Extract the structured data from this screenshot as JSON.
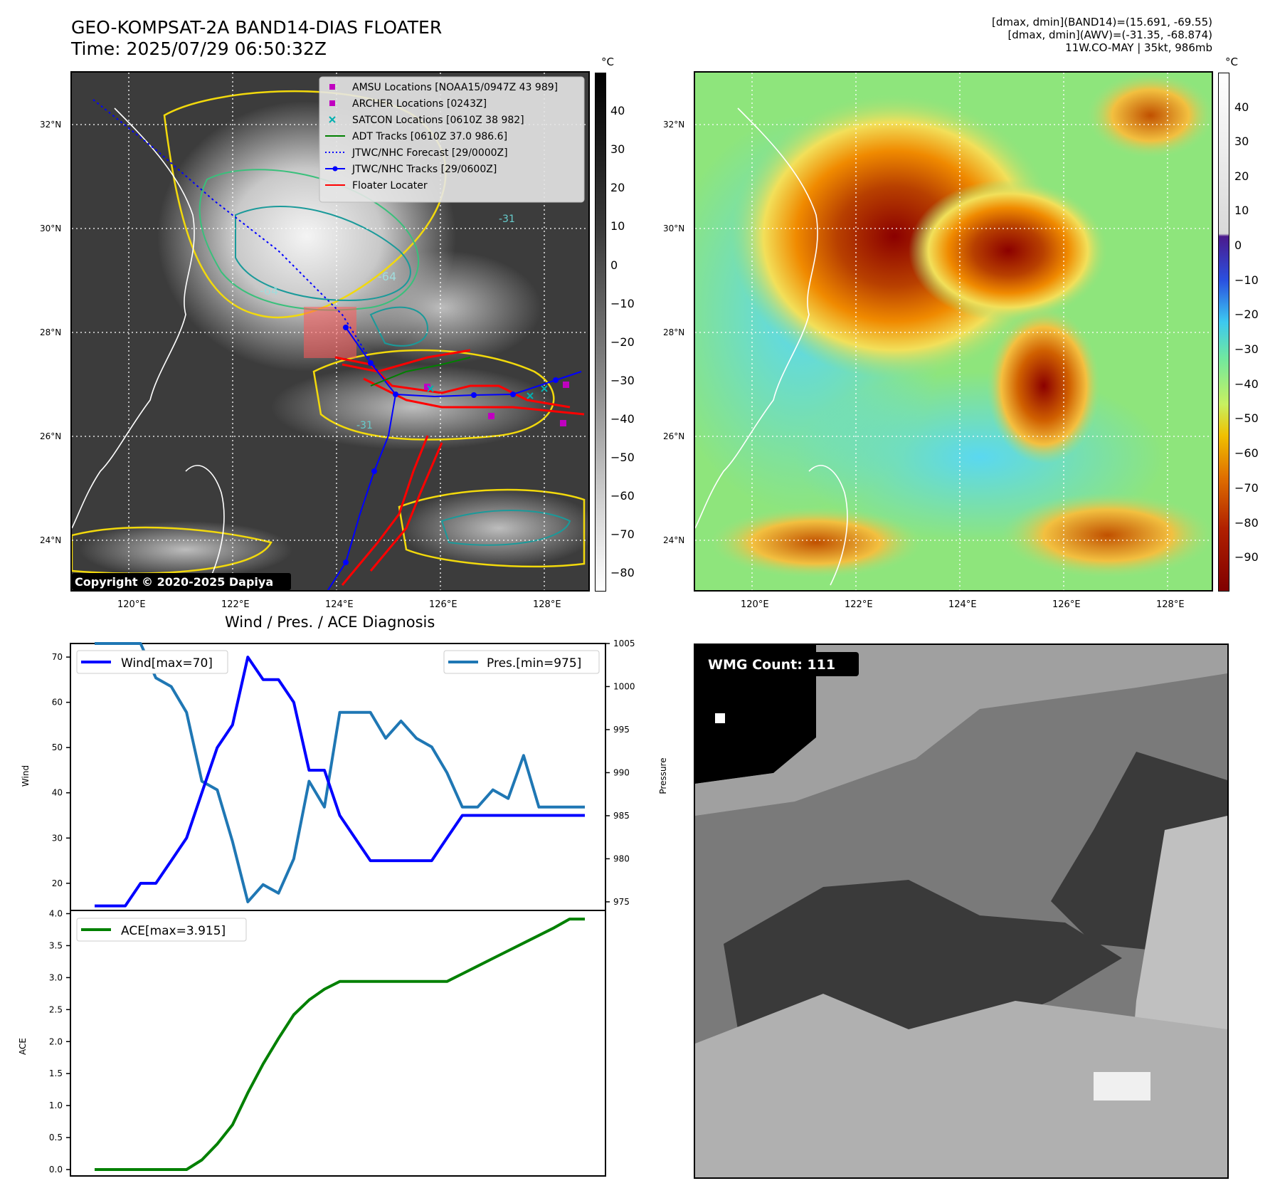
{
  "header": {
    "title_line1": "GEO-KOMPSAT-2A BAND14-DIAS FLOATER",
    "title_line2": "Time: 2025/07/29 06:50:32Z",
    "info_line1": "[dmax, dmin](BAND14)=(15.691, -69.55)",
    "info_line2": "[dmax, dmin](AWV)=(-31.35, -68.874)",
    "info_line3": "11W.CO-MAY | 35kt, 986mb"
  },
  "map_axes": {
    "lat_labels": [
      "32°N",
      "30°N",
      "28°N",
      "26°N",
      "24°N"
    ],
    "lon_labels": [
      "120°E",
      "122°E",
      "124°E",
      "126°E",
      "128°E"
    ]
  },
  "ir_panel": {
    "copyright": "Copyright © 2020-2025 Dapiya",
    "contour_labels": [
      "-64",
      "-64",
      "-31",
      "-31"
    ],
    "legend": [
      {
        "label": "AMSU Locations [NOAA15/0947Z 43 989]",
        "marker": "square",
        "color": "#c000c0"
      },
      {
        "label": "ARCHER Locations [0243Z]",
        "marker": "square",
        "color": "#c000c0"
      },
      {
        "label": "SATCON Locations [0610Z 38 982]",
        "marker": "x",
        "color": "#00b0b0"
      },
      {
        "label": "ADT Tracks [0610Z 37.0 986.6]",
        "marker": "line",
        "color": "#008000"
      },
      {
        "label": "JTWC/NHC Forecast [29/0000Z]",
        "marker": "dotted",
        "color": "#0000ff"
      },
      {
        "label": "JTWC/NHC Tracks [29/0600Z]",
        "marker": "line-dot",
        "color": "#0000ff"
      },
      {
        "label": "Floater Locater",
        "marker": "line",
        "color": "#ff0000"
      }
    ]
  },
  "colorbar_ir": {
    "unit": "°C",
    "ticks": [
      "40",
      "30",
      "20",
      "10",
      "0",
      "−10",
      "−20",
      "−30",
      "−40",
      "−50",
      "−60",
      "−70",
      "−80"
    ]
  },
  "colorbar_color": {
    "unit": "°C",
    "ticks": [
      "40",
      "30",
      "20",
      "10",
      "0",
      "−10",
      "−20",
      "−30",
      "−40",
      "−50",
      "−60",
      "−70",
      "−80",
      "−90"
    ]
  },
  "diagnosis": {
    "title": "Wind / Pres. / ACE Diagnosis",
    "wind_axis_label": "Wind",
    "pressure_axis_label": "Pressure",
    "ace_axis_label": "ACE",
    "wind_legend": "Wind[max=70]",
    "pressure_legend": "Pres.[min=975]",
    "ace_legend": "ACE[max=3.915]",
    "wind_ticks": [
      "70",
      "60",
      "50",
      "40",
      "30",
      "20"
    ],
    "pressure_ticks": [
      "1005",
      "1000",
      "995",
      "990",
      "985",
      "980",
      "975"
    ],
    "ace_ticks": [
      "4.0",
      "3.5",
      "3.0",
      "2.5",
      "2.0",
      "1.5",
      "1.0",
      "0.5",
      "0.0"
    ]
  },
  "wmg": {
    "label": "WMG Count: 111"
  },
  "chart_data": [
    {
      "type": "line",
      "title": "Wind / Pres. / ACE Diagnosis",
      "x": [
        0,
        1,
        2,
        3,
        4,
        5,
        6,
        7,
        8,
        9,
        10,
        11,
        12,
        13,
        14,
        15,
        16,
        17,
        18,
        19,
        20,
        21,
        22,
        23,
        24,
        25,
        26,
        27,
        28,
        29,
        30,
        31,
        32
      ],
      "series": [
        {
          "name": "Wind[max=70]",
          "axis": "Wind",
          "color": "#0000ff",
          "values": [
            15,
            15,
            15,
            20,
            20,
            25,
            30,
            40,
            50,
            55,
            70,
            65,
            65,
            60,
            45,
            45,
            35,
            30,
            25,
            25,
            25,
            25,
            25,
            30,
            35,
            35,
            35,
            35,
            35,
            35,
            35,
            35,
            35
          ]
        },
        {
          "name": "Pres.[min=975]",
          "axis": "Pressure",
          "color": "#1f77b4",
          "values": [
            1005,
            1005,
            1005,
            1005,
            1001,
            1000,
            997,
            989,
            988,
            982,
            975,
            977,
            976,
            980,
            989,
            986,
            997,
            997,
            997,
            994,
            996,
            994,
            993,
            990,
            986,
            986,
            988,
            987,
            992,
            986,
            986,
            986,
            986
          ]
        }
      ],
      "ylim_wind": [
        14,
        73
      ],
      "ylim_pressure": [
        974,
        1005
      ]
    },
    {
      "type": "line",
      "x": [
        0,
        1,
        2,
        3,
        4,
        5,
        6,
        7,
        8,
        9,
        10,
        11,
        12,
        13,
        14,
        15,
        16,
        17,
        18,
        19,
        20,
        21,
        22,
        23,
        24,
        25,
        26,
        27,
        28,
        29,
        30,
        31,
        32
      ],
      "series": [
        {
          "name": "ACE[max=3.915]",
          "color": "#008000",
          "values": [
            0,
            0,
            0,
            0,
            0,
            0,
            0,
            0.15,
            0.4,
            0.7,
            1.2,
            1.65,
            2.05,
            2.42,
            2.65,
            2.82,
            2.94,
            2.94,
            2.94,
            2.94,
            2.94,
            2.94,
            2.94,
            2.94,
            3.06,
            3.18,
            3.3,
            3.42,
            3.54,
            3.66,
            3.78,
            3.915,
            3.915
          ]
        }
      ],
      "ylim": [
        -0.1,
        4.05
      ]
    }
  ]
}
